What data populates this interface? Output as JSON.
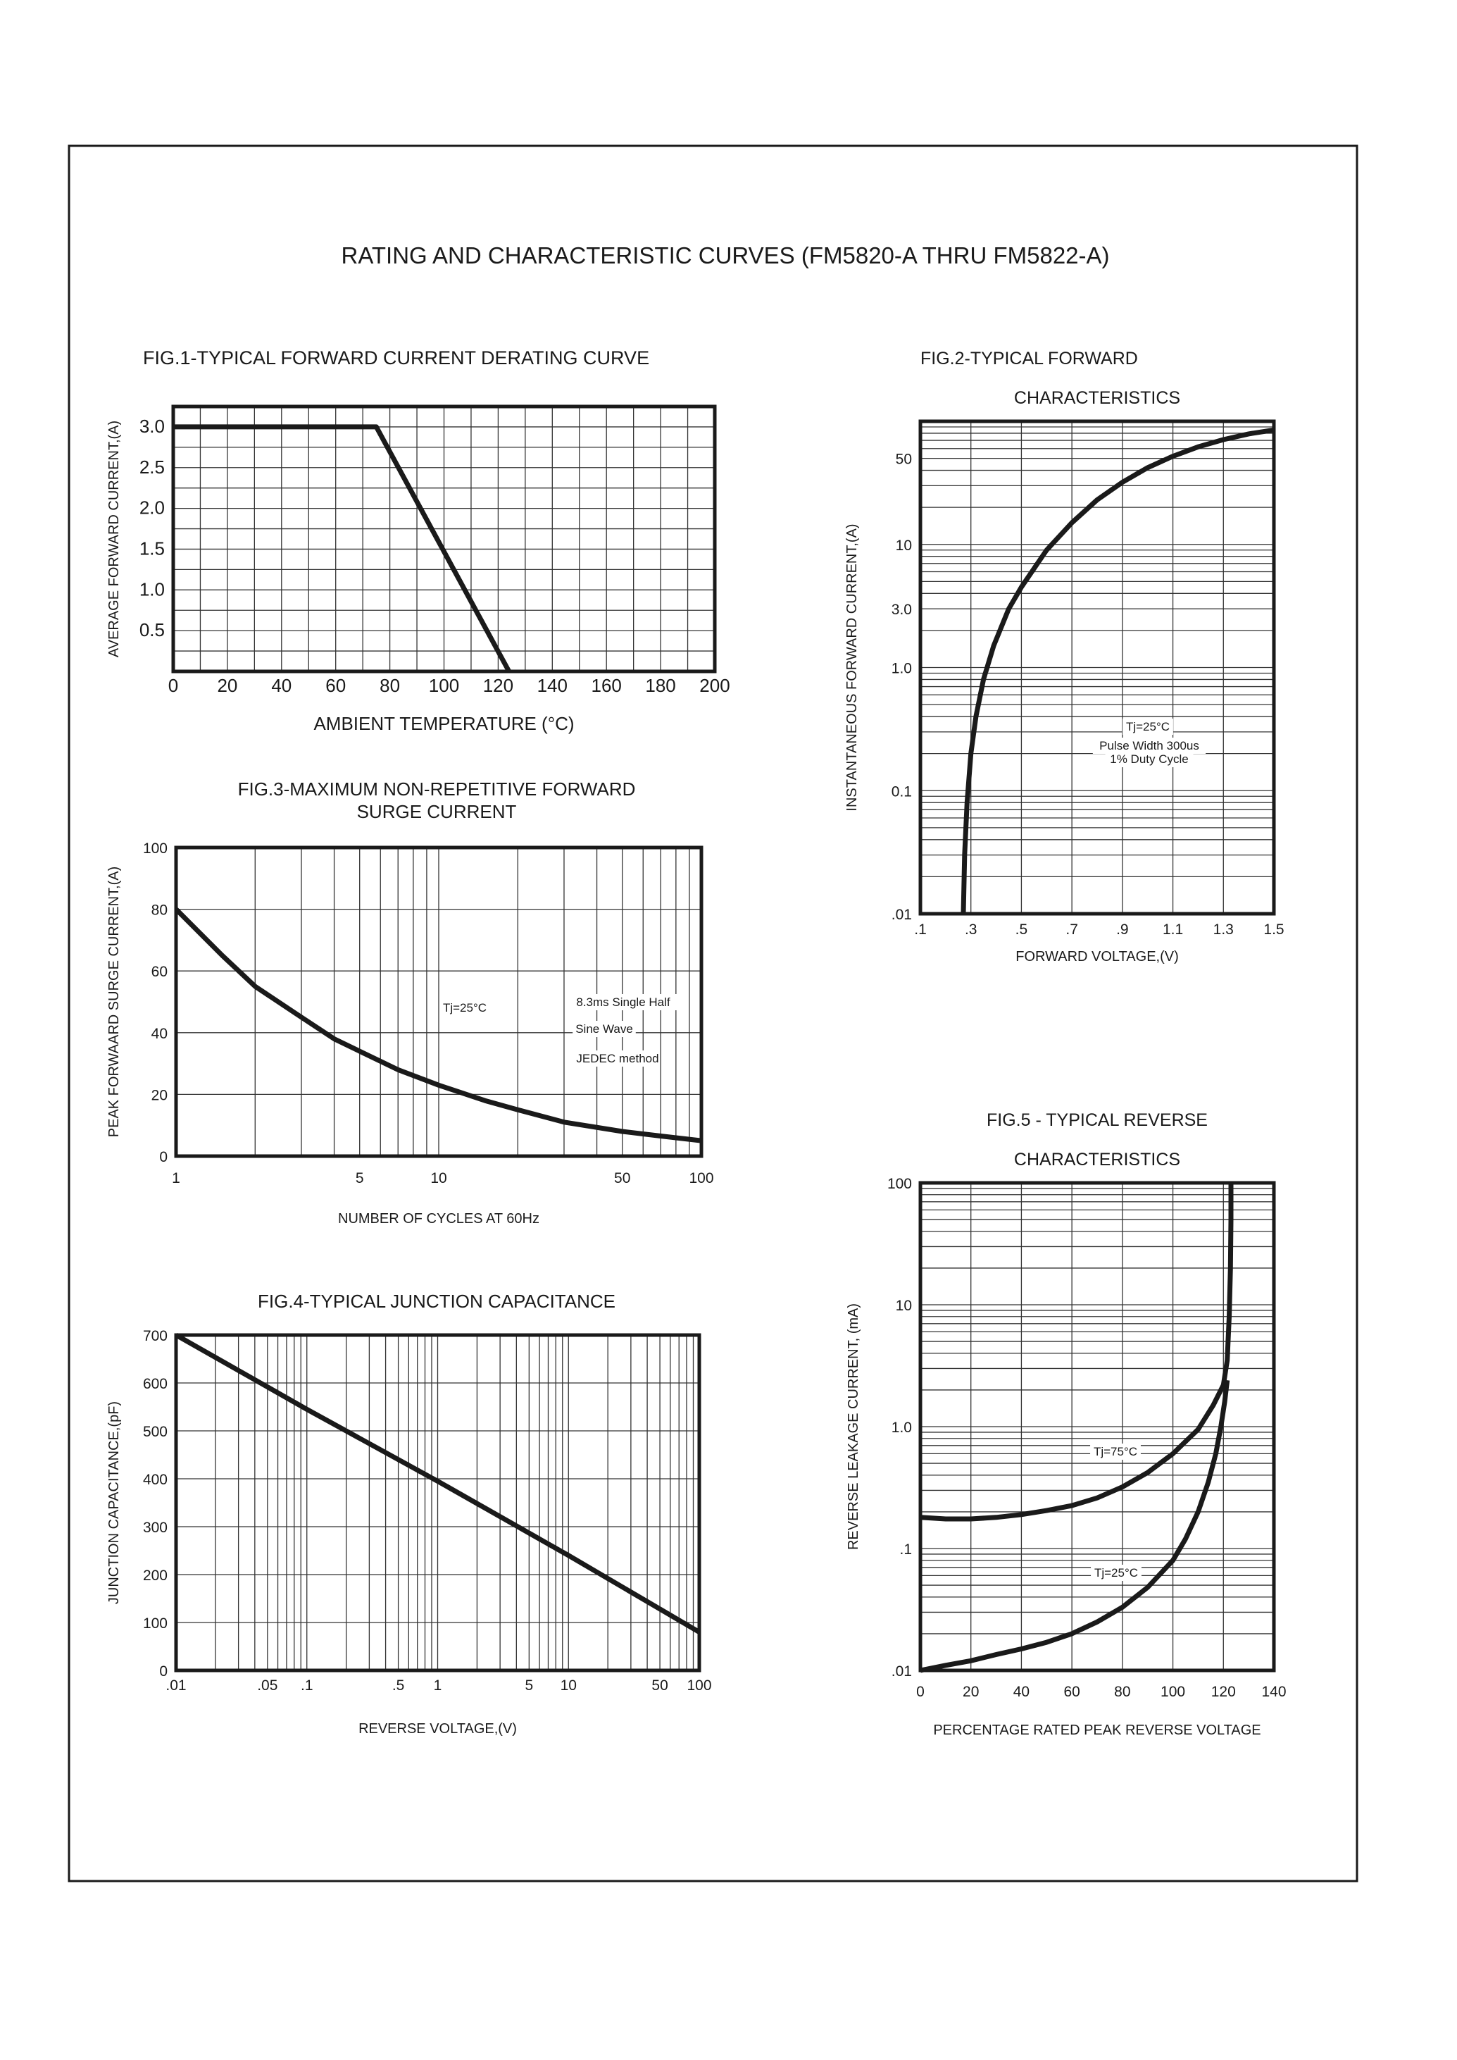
{
  "page_title": "RATING AND CHARACTERISTIC CURVES (FM5820-A THRU FM5822-A)",
  "chart_data": [
    {
      "type": "line",
      "title": [
        "FIG.1-TYPICAL FORWARD CURRENT DERATING CURVE"
      ],
      "xlabel": "AMBIENT TEMPERATURE (°C)",
      "ylabel": "AVERAGE FORWARD CURRENT,(A)",
      "xscale": "linear",
      "yscale": "linear",
      "xlim": [
        0,
        200
      ],
      "ylim": [
        0,
        3.25
      ],
      "grid": true,
      "xticks": [
        {
          "v": 0,
          "label": "0"
        },
        {
          "v": 20,
          "label": "20"
        },
        {
          "v": 40,
          "label": "40"
        },
        {
          "v": 60,
          "label": "60"
        },
        {
          "v": 80,
          "label": "80"
        },
        {
          "v": 100,
          "label": "100"
        },
        {
          "v": 120,
          "label": "120"
        },
        {
          "v": 140,
          "label": "140"
        },
        {
          "v": 160,
          "label": "160"
        },
        {
          "v": 180,
          "label": "180"
        },
        {
          "v": 200,
          "label": "200"
        }
      ],
      "yticks": [
        {
          "v": 0.5,
          "label": "0.5"
        },
        {
          "v": 1.0,
          "label": "1.0"
        },
        {
          "v": 1.5,
          "label": "1.5"
        },
        {
          "v": 2.0,
          "label": "2.0"
        },
        {
          "v": 2.5,
          "label": "2.5"
        },
        {
          "v": 3.0,
          "label": "3.0"
        }
      ],
      "series": [
        {
          "x": [
            0,
            75,
            124
          ],
          "y": [
            3.0,
            3.0,
            0
          ]
        }
      ],
      "annotations": []
    },
    {
      "type": "line",
      "title": [
        "FIG.2-TYPICAL FORWARD",
        "CHARACTERISTICS"
      ],
      "xlabel": "FORWARD VOLTAGE,(V)",
      "ylabel": "INSTANTANEOUS FORWARD CURRENT,(A)",
      "xscale": "linear",
      "yscale": "log",
      "xlim": [
        0.1,
        1.5
      ],
      "ylim": [
        0.01,
        100
      ],
      "grid": true,
      "xticks": [
        {
          "v": 0.1,
          "label": ".1"
        },
        {
          "v": 0.3,
          "label": ".3"
        },
        {
          "v": 0.5,
          "label": ".5"
        },
        {
          "v": 0.7,
          "label": ".7"
        },
        {
          "v": 0.9,
          "label": ".9"
        },
        {
          "v": 1.1,
          "label": "1.1"
        },
        {
          "v": 1.3,
          "label": "1.3"
        },
        {
          "v": 1.5,
          "label": "1.5"
        }
      ],
      "yticks": [
        {
          "v": 0.01,
          "label": ".01"
        },
        {
          "v": 0.1,
          "label": "0.1"
        },
        {
          "v": 1,
          "label": "1.0"
        },
        {
          "v": 3,
          "label": "3.0"
        },
        {
          "v": 10,
          "label": "10"
        },
        {
          "v": 50,
          "label": "50"
        }
      ],
      "series": [
        {
          "x": [
            0.27,
            0.275,
            0.285,
            0.3,
            0.32,
            0.35,
            0.39,
            0.45,
            0.5,
            0.6,
            0.7,
            0.8,
            0.9,
            1.0,
            1.1,
            1.2,
            1.3,
            1.4,
            1.5
          ],
          "y": [
            0.01,
            0.03,
            0.08,
            0.2,
            0.4,
            0.8,
            1.5,
            3,
            4.5,
            9,
            15,
            23,
            32,
            42,
            52,
            62,
            71,
            79,
            85
          ]
        }
      ],
      "annotations": [
        "Tj=25°C",
        "Pulse Width 300us",
        "1% Duty Cycle"
      ]
    },
    {
      "type": "line",
      "title": [
        "FIG.3-MAXIMUM NON-REPETITIVE FORWARD",
        "SURGE CURRENT"
      ],
      "xlabel": "NUMBER OF CYCLES AT 60Hz",
      "ylabel": "PEAK FORWAARD SURGE CURRENT,(A)",
      "xscale": "log",
      "yscale": "linear",
      "xlim": [
        1,
        100
      ],
      "ylim": [
        0,
        100
      ],
      "grid": true,
      "xticks": [
        {
          "v": 1,
          "label": "1"
        },
        {
          "v": 5,
          "label": "5"
        },
        {
          "v": 10,
          "label": "10"
        },
        {
          "v": 50,
          "label": "50"
        },
        {
          "v": 100,
          "label": "100"
        }
      ],
      "yticks": [
        {
          "v": 0,
          "label": "0"
        },
        {
          "v": 20,
          "label": "20"
        },
        {
          "v": 40,
          "label": "40"
        },
        {
          "v": 60,
          "label": "60"
        },
        {
          "v": 80,
          "label": "80"
        },
        {
          "v": 100,
          "label": "100"
        }
      ],
      "series": [
        {
          "x": [
            1,
            1.5,
            2,
            3,
            4,
            5,
            7,
            10,
            15,
            20,
            30,
            50,
            70,
            100
          ],
          "y": [
            80,
            65,
            55,
            45,
            38,
            34,
            28,
            23,
            18,
            15,
            11,
            8,
            6.5,
            5
          ]
        }
      ],
      "annotations": [
        "Tj=25°C",
        "8.3ms Single Half",
        "Sine Wave",
        "JEDEC method"
      ]
    },
    {
      "type": "line",
      "title": [
        "FIG.4-TYPICAL JUNCTION CAPACITANCE"
      ],
      "xlabel": "REVERSE VOLTAGE,(V)",
      "ylabel": "JUNCTION CAPACITANCE,(pF)",
      "xscale": "log",
      "yscale": "linear",
      "xlim": [
        0.01,
        100
      ],
      "ylim": [
        0,
        700
      ],
      "grid": true,
      "xticks": [
        {
          "v": 0.01,
          "label": ".01"
        },
        {
          "v": 0.05,
          "label": ".05"
        },
        {
          "v": 0.1,
          "label": ".1"
        },
        {
          "v": 0.5,
          "label": ".5"
        },
        {
          "v": 1,
          "label": "1"
        },
        {
          "v": 5,
          "label": "5"
        },
        {
          "v": 10,
          "label": "10"
        },
        {
          "v": 50,
          "label": "50"
        },
        {
          "v": 100,
          "label": "100"
        }
      ],
      "yticks": [
        {
          "v": 0,
          "label": "0"
        },
        {
          "v": 100,
          "label": "100"
        },
        {
          "v": 200,
          "label": "200"
        },
        {
          "v": 300,
          "label": "300"
        },
        {
          "v": 400,
          "label": "400"
        },
        {
          "v": 500,
          "label": "500"
        },
        {
          "v": 600,
          "label": "600"
        },
        {
          "v": 700,
          "label": "700"
        }
      ],
      "series": [
        {
          "x": [
            0.01,
            0.1,
            1,
            10,
            100
          ],
          "y": [
            700,
            545,
            395,
            240,
            80
          ]
        }
      ],
      "annotations": []
    },
    {
      "type": "line",
      "title": [
        "FIG.5 - TYPICAL REVERSE",
        "CHARACTERISTICS"
      ],
      "xlabel": "PERCENTAGE RATED PEAK REVERSE VOLTAGE",
      "ylabel": "REVERSE LEAKAGE CURRENT, (mA)",
      "xscale": "linear",
      "yscale": "log",
      "xlim": [
        0,
        140
      ],
      "ylim": [
        0.01,
        100
      ],
      "grid": true,
      "xticks": [
        {
          "v": 0,
          "label": "0"
        },
        {
          "v": 20,
          "label": "20"
        },
        {
          "v": 40,
          "label": "40"
        },
        {
          "v": 60,
          "label": "60"
        },
        {
          "v": 80,
          "label": "80"
        },
        {
          "v": 100,
          "label": "100"
        },
        {
          "v": 120,
          "label": "120"
        },
        {
          "v": 140,
          "label": "140"
        }
      ],
      "yticks": [
        {
          "v": 0.01,
          "label": ".01"
        },
        {
          "v": 0.1,
          "label": ".1"
        },
        {
          "v": 1,
          "label": "1.0"
        },
        {
          "v": 10,
          "label": "10"
        },
        {
          "v": 100,
          "label": "100"
        }
      ],
      "series": [
        {
          "name": "Tj=75°C",
          "x": [
            0,
            10,
            20,
            30,
            40,
            50,
            60,
            70,
            80,
            90,
            100,
            110,
            116,
            120,
            121.5,
            122.3,
            122.8,
            123,
            123
          ],
          "y": [
            0.18,
            0.175,
            0.175,
            0.18,
            0.19,
            0.205,
            0.225,
            0.26,
            0.32,
            0.42,
            0.6,
            0.95,
            1.5,
            2.2,
            3.5,
            8,
            20,
            50,
            100
          ]
        },
        {
          "name": "Tj=25°C",
          "x": [
            0,
            10,
            20,
            30,
            40,
            50,
            60,
            70,
            80,
            90,
            100,
            105,
            110,
            114,
            117,
            119,
            120.5,
            121.5
          ],
          "y": [
            0.01,
            0.011,
            0.012,
            0.0135,
            0.015,
            0.017,
            0.02,
            0.025,
            0.033,
            0.048,
            0.08,
            0.12,
            0.2,
            0.35,
            0.6,
            1.0,
            1.6,
            2.4
          ]
        }
      ],
      "annotations": [
        "Tj=75°C",
        "Tj=25°C"
      ]
    }
  ]
}
